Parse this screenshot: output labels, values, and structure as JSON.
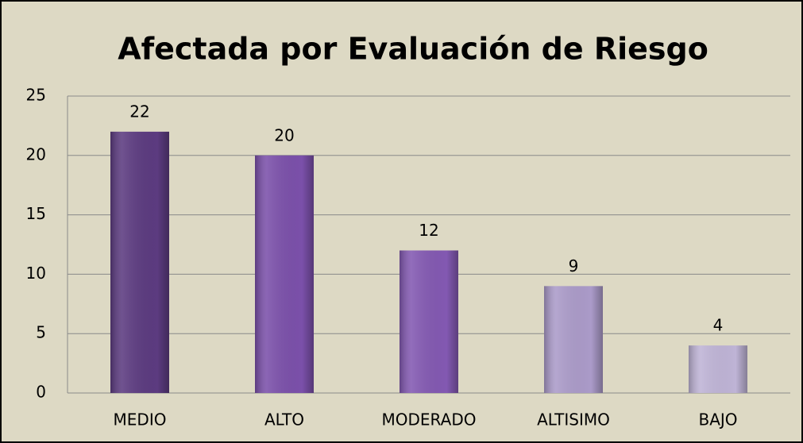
{
  "chart_data": {
    "type": "bar",
    "title": "Afectada por Evaluación de Riesgo",
    "categories": [
      "MEDIO",
      "ALTO",
      "MODERADO",
      "ALTISIMO",
      "BAJO"
    ],
    "values": [
      22,
      20,
      12,
      9,
      4
    ],
    "colors": [
      "#5c3b80",
      "#7b50aa",
      "#8359b2",
      "#ab9bc9",
      "#bfb4d6"
    ],
    "ylim": [
      0,
      25
    ],
    "yticks": [
      0,
      5,
      10,
      15,
      20,
      25
    ],
    "grid": true
  }
}
